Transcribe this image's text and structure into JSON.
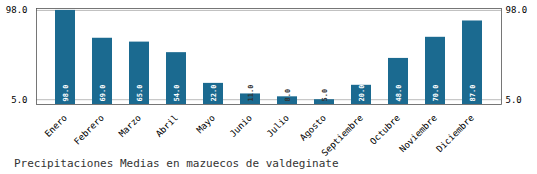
{
  "chart_data": {
    "type": "bar",
    "title": "Precipitaciones Medias en mazuecos de valdeginate",
    "categories": [
      "Enero",
      "Febrero",
      "Marzo",
      "Abril",
      "Mayo",
      "Junio",
      "Julio",
      "Agosto",
      "Septiembre",
      "Octubre",
      "Noviembre",
      "Diciembre"
    ],
    "values": [
      98.0,
      69.0,
      65.0,
      54.0,
      22.0,
      11.0,
      8.0,
      5.0,
      20.0,
      48.0,
      70.0,
      87.0
    ],
    "value_labels": [
      "98.0",
      "69.0",
      "65.0",
      "54.0",
      "22.0",
      "11.0",
      "8.0",
      "5.0",
      "20.0",
      "48.0",
      "70.0",
      "87.0"
    ],
    "data_labels": true,
    "color": "#1b6a90",
    "ylim": [
      0,
      100
    ],
    "yticks": [
      {
        "value": 5,
        "label": "5.0"
      },
      {
        "value": 98,
        "label": "98.0"
      }
    ],
    "y2lim": [
      0,
      100
    ],
    "y2ticks": [
      {
        "value": 5,
        "label": "5.0"
      },
      {
        "value": 98,
        "label": "98.0"
      }
    ],
    "grid": true
  }
}
